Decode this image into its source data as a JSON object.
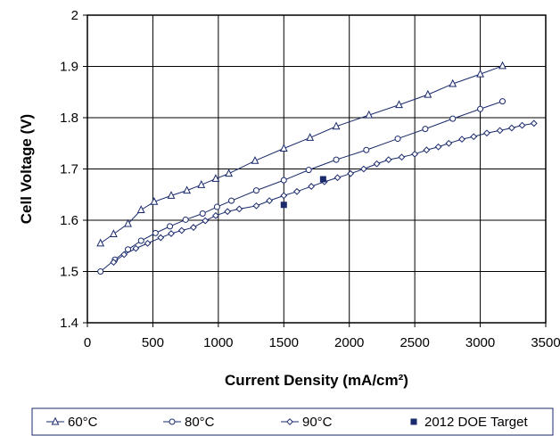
{
  "chart_data": {
    "type": "line",
    "title": "",
    "xlabel": "Current Density (mA/cm²)",
    "ylabel": "Cell Voltage (V)",
    "xlim": [
      0,
      3500
    ],
    "ylim": [
      1.4,
      2.0
    ],
    "xticks": [
      "0",
      "500",
      "1000",
      "1500",
      "2000",
      "2500",
      "3000",
      "3500"
    ],
    "yticks": [
      "1.4",
      "1.5",
      "1.6",
      "1.7",
      "1.8",
      "1.9",
      "2"
    ],
    "grid": true,
    "legend_position": "bottom",
    "series": [
      {
        "name": "60°C",
        "marker": "triangle",
        "color": "#1a2a6c",
        "x": [
          100,
          200,
          310,
          410,
          510,
          640,
          760,
          870,
          980,
          1080,
          1280,
          1500,
          1700,
          1900,
          2150,
          2380,
          2600,
          2790,
          3000,
          3170
        ],
        "y": [
          1.555,
          1.573,
          1.593,
          1.62,
          1.636,
          1.648,
          1.658,
          1.669,
          1.681,
          1.691,
          1.716,
          1.74,
          1.761,
          1.783,
          1.805,
          1.825,
          1.845,
          1.866,
          1.885,
          1.901
        ]
      },
      {
        "name": "80°C",
        "marker": "circle",
        "color": "#1a2a6c",
        "x": [
          100,
          210,
          310,
          410,
          520,
          630,
          750,
          880,
          990,
          1100,
          1290,
          1500,
          1690,
          1900,
          2130,
          2370,
          2580,
          2790,
          3000,
          3170
        ],
        "y": [
          1.5,
          1.523,
          1.543,
          1.56,
          1.575,
          1.588,
          1.601,
          1.613,
          1.626,
          1.638,
          1.658,
          1.678,
          1.698,
          1.718,
          1.737,
          1.759,
          1.778,
          1.798,
          1.817,
          1.832
        ]
      },
      {
        "name": "90°C",
        "marker": "diamond",
        "color": "#1a2a6c",
        "x": [
          200,
          280,
          370,
          460,
          560,
          640,
          720,
          810,
          900,
          980,
          1070,
          1160,
          1290,
          1390,
          1500,
          1600,
          1710,
          1810,
          1910,
          2010,
          2110,
          2210,
          2300,
          2400,
          2500,
          2590,
          2680,
          2760,
          2860,
          2950,
          3050,
          3150,
          3240,
          3320,
          3410
        ],
        "y": [
          1.518,
          1.533,
          1.545,
          1.555,
          1.566,
          1.574,
          1.58,
          1.586,
          1.599,
          1.609,
          1.617,
          1.622,
          1.628,
          1.638,
          1.648,
          1.656,
          1.666,
          1.675,
          1.683,
          1.691,
          1.7,
          1.71,
          1.718,
          1.723,
          1.729,
          1.737,
          1.743,
          1.75,
          1.758,
          1.763,
          1.77,
          1.775,
          1.78,
          1.785,
          1.789
        ]
      },
      {
        "name": "2012 DOE Target",
        "marker": "square",
        "color": "#1a2a6c",
        "x": [
          1500,
          1800
        ],
        "y": [
          1.63,
          1.68
        ]
      }
    ]
  }
}
